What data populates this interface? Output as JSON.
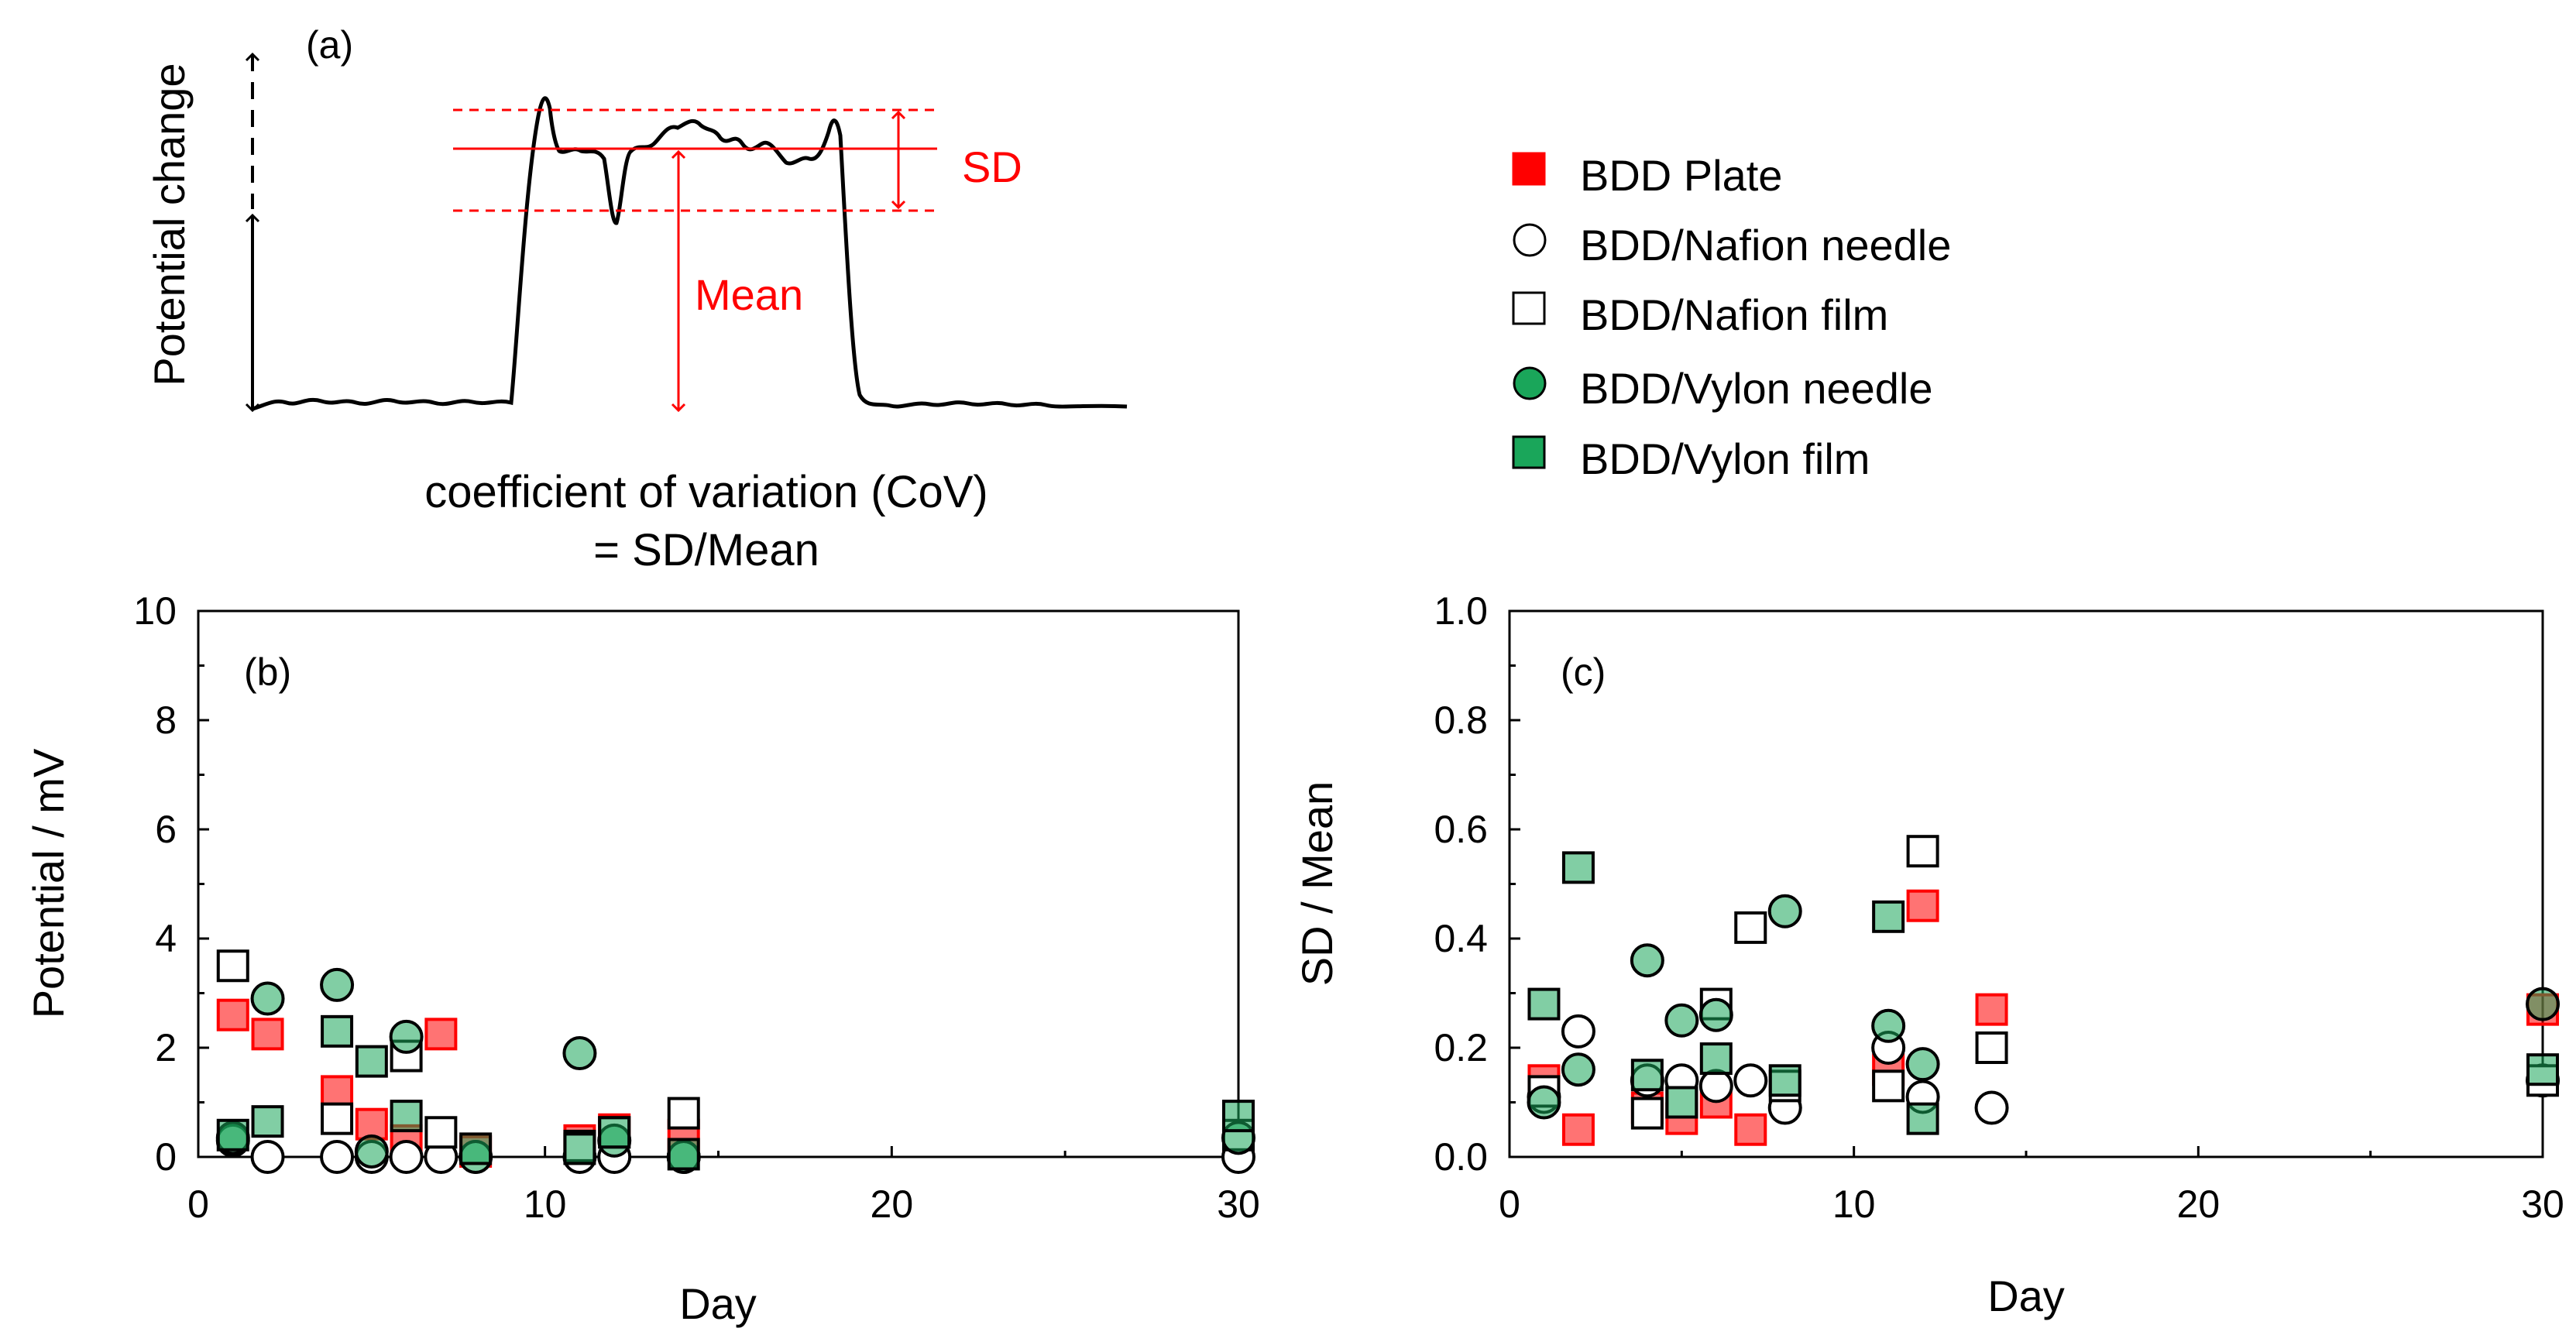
{
  "figure": {
    "panel_a": {
      "label": "(a)",
      "ylabel": "Potential change",
      "sd_label": "SD",
      "mean_label": "Mean",
      "caption_line1": "coefficient of variation (CoV)",
      "caption_line2": "= SD/Mean"
    },
    "legend": [
      {
        "name": "BDD Plate",
        "marker": "square",
        "fill": "#ff0000",
        "stroke": "#ff0000"
      },
      {
        "name": "BDD/Nafion needle",
        "marker": "circle",
        "fill": "#ffffff",
        "stroke": "#000000"
      },
      {
        "name": "BDD/Nafion film",
        "marker": "square",
        "fill": "#ffffff",
        "stroke": "#000000"
      },
      {
        "name": "BDD/Vylon needle",
        "marker": "circle",
        "fill": "#1aa65a",
        "stroke": "#000000"
      },
      {
        "name": "BDD/Vylon film",
        "marker": "square",
        "fill": "#1aa65a",
        "stroke": "#000000"
      }
    ]
  },
  "chart_data": [
    {
      "type": "scatter",
      "panel_label": "(b)",
      "title": "",
      "xlabel": "Day",
      "ylabel": "Potential / mV",
      "xlim": [
        0,
        30
      ],
      "ylim": [
        0,
        10
      ],
      "xticks": [
        0,
        10,
        20,
        30
      ],
      "yticks": [
        0,
        2,
        4,
        6,
        8,
        10
      ],
      "xtick_labels": [
        "0",
        "10",
        "20",
        "30"
      ],
      "ytick_labels": [
        "0",
        "2",
        "4",
        "6",
        "8",
        "10"
      ],
      "series": [
        {
          "name": "BDD Plate",
          "marker": "square",
          "fill": "#ff0000",
          "fill_opacity": 0.55,
          "stroke": "#ff0000",
          "x": [
            1,
            2,
            4,
            5,
            6,
            7,
            8,
            11,
            12,
            14,
            30
          ],
          "y": [
            2.6,
            2.25,
            1.2,
            0.6,
            0.3,
            2.25,
            0.1,
            0.3,
            0.5,
            0.4,
            0.3
          ]
        },
        {
          "name": "BDD/Nafion needle",
          "marker": "circle",
          "fill": "#ffffff",
          "fill_opacity": 1,
          "stroke": "#000000",
          "x": [
            1,
            2,
            4,
            5,
            6,
            7,
            8,
            11,
            12,
            14,
            30
          ],
          "y": [
            0.3,
            0.0,
            0.0,
            0.0,
            0.0,
            0.0,
            0.0,
            0.0,
            0.0,
            0.0,
            0.0
          ]
        },
        {
          "name": "BDD/Nafion film",
          "marker": "square",
          "fill": "#ffffff",
          "fill_opacity": 1,
          "stroke": "#000000",
          "x": [
            1,
            4,
            6,
            7,
            11,
            12,
            14,
            30
          ],
          "y": [
            3.5,
            0.7,
            1.85,
            0.45,
            0.2,
            0.45,
            0.8,
            0.4
          ]
        },
        {
          "name": "BDD/Vylon needle",
          "marker": "circle",
          "fill": "#1aa65a",
          "fill_opacity": 0.55,
          "stroke": "#000000",
          "x": [
            1,
            2,
            4,
            5,
            6,
            8,
            11,
            12,
            14,
            30
          ],
          "y": [
            0.35,
            2.9,
            3.15,
            0.1,
            2.2,
            0.0,
            1.9,
            0.3,
            0.0,
            0.35
          ]
        },
        {
          "name": "BDD/Vylon film",
          "marker": "square",
          "fill": "#1aa65a",
          "fill_opacity": 0.55,
          "stroke": "#000000",
          "x": [
            1,
            2,
            4,
            5,
            6,
            8,
            11,
            12,
            14,
            30
          ],
          "y": [
            0.4,
            0.65,
            2.3,
            1.75,
            0.75,
            0.15,
            0.15,
            0.45,
            0.05,
            0.75
          ]
        }
      ]
    },
    {
      "type": "scatter",
      "panel_label": "(c)",
      "title": "",
      "xlabel": "Day",
      "ylabel": "SD / Mean",
      "xlim": [
        0,
        30
      ],
      "ylim": [
        0,
        1
      ],
      "xticks": [
        0,
        10,
        20,
        30
      ],
      "yticks": [
        0,
        0.2,
        0.4,
        0.6,
        0.8,
        1.0
      ],
      "xtick_labels": [
        "0",
        "10",
        "20",
        "30"
      ],
      "ytick_labels": [
        "0.0",
        "0.2",
        "0.4",
        "0.6",
        "0.8",
        "1.0"
      ],
      "series": [
        {
          "name": "BDD Plate",
          "marker": "square",
          "fill": "#ff0000",
          "fill_opacity": 0.55,
          "stroke": "#ff0000",
          "x": [
            1,
            2,
            4,
            5,
            6,
            7,
            11,
            12,
            14,
            30
          ],
          "y": [
            0.14,
            0.05,
            0.09,
            0.07,
            0.1,
            0.05,
            0.16,
            0.46,
            0.27,
            0.27
          ]
        },
        {
          "name": "BDD/Nafion needle",
          "marker": "circle",
          "fill": "#ffffff",
          "fill_opacity": 1,
          "stroke": "#000000",
          "x": [
            1,
            2,
            4,
            5,
            6,
            7,
            8,
            11,
            12,
            14,
            30
          ],
          "y": [
            0.11,
            0.23,
            0.14,
            0.14,
            0.13,
            0.14,
            0.09,
            0.2,
            0.11,
            0.09,
            0.14
          ]
        },
        {
          "name": "BDD/Nafion film",
          "marker": "square",
          "fill": "#ffffff",
          "fill_opacity": 1,
          "stroke": "#000000",
          "x": [
            1,
            4,
            5,
            6,
            7,
            8,
            11,
            12,
            14,
            30
          ],
          "y": [
            0.12,
            0.08,
            0.1,
            0.28,
            0.42,
            0.13,
            0.13,
            0.56,
            0.2,
            0.14
          ]
        },
        {
          "name": "BDD/Vylon needle",
          "marker": "circle",
          "fill": "#1aa65a",
          "fill_opacity": 0.55,
          "stroke": "#000000",
          "x": [
            1,
            2,
            4,
            5,
            6,
            8,
            11,
            12,
            30
          ],
          "y": [
            0.1,
            0.16,
            0.36,
            0.25,
            0.26,
            0.45,
            0.24,
            0.17,
            0.28
          ]
        },
        {
          "name": "BDD/Vylon film",
          "marker": "square",
          "fill": "#1aa65a",
          "fill_opacity": 0.55,
          "stroke": "#000000",
          "x": [
            1,
            2,
            4,
            5,
            6,
            8,
            11,
            12,
            30
          ],
          "y": [
            0.28,
            0.53,
            0.15,
            0.1,
            0.18,
            0.14,
            0.44,
            0.07,
            0.16
          ]
        }
      ]
    }
  ]
}
